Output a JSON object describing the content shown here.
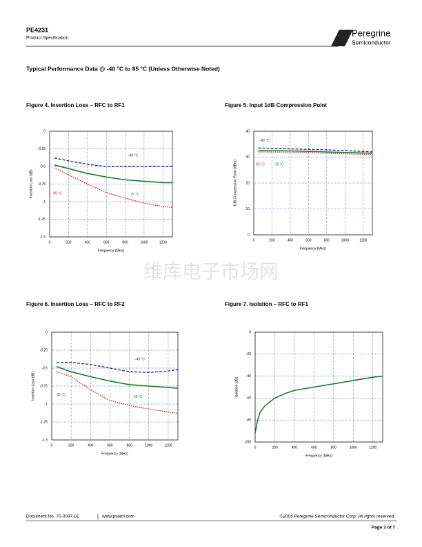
{
  "header": {
    "part": "PE4231",
    "subtitle": "Product Specification",
    "logo_top": "Peregrine",
    "logo_bottom": "Semiconductor"
  },
  "section_title": "Typical Performance Data @ -40 °C to 85 °C (Unless Otherwise Noted)",
  "watermark": "维库电子市场网",
  "footer": {
    "doc": "Document No. 70-0097-01",
    "url": "www.psemi.com",
    "copyright": "©2005 Peregrine Semiconductor Corp.  All rights reserved.",
    "page": "Page  3 of 7"
  },
  "chart_data": [
    {
      "type": "line",
      "title": "Figure 4.  Insertion Loss – RFC to RF1",
      "xlabel": "Frequency (MHz)",
      "ylabel": "Insertion Loss (dB)",
      "x": [
        50,
        200,
        400,
        600,
        800,
        1000,
        1200,
        1300
      ],
      "series": [
        {
          "name": "-40 °C",
          "color": "#1a2fa0",
          "style": "dashed",
          "values": [
            -0.38,
            -0.42,
            -0.47,
            -0.5,
            -0.5,
            -0.5,
            -0.5,
            -0.5
          ]
        },
        {
          "name": "25 °C",
          "color": "#1a7a2a",
          "style": "solid",
          "values": [
            -0.48,
            -0.53,
            -0.6,
            -0.65,
            -0.69,
            -0.71,
            -0.73,
            -0.73
          ]
        },
        {
          "name": "85 °C",
          "color": "#d42020",
          "style": "dotted",
          "values": [
            -0.52,
            -0.62,
            -0.75,
            -0.87,
            -0.95,
            -1.02,
            -1.07,
            -1.08
          ]
        }
      ],
      "xlim": [
        0,
        1300
      ],
      "xticks": [
        0,
        200,
        400,
        600,
        800,
        1000,
        1200
      ],
      "ylim": [
        -1.5,
        0
      ],
      "yticks": [
        0,
        -0.25,
        -0.5,
        -0.75,
        -1,
        -1.25,
        -1.5
      ],
      "grid": true
    },
    {
      "type": "line",
      "title": "Figure 5. Input 1dB Compression Point",
      "xlabel": "Frequency (MHz)",
      "ylabel": "1dB Compression Point (dBm)",
      "x": [
        50,
        200,
        400,
        600,
        800,
        1000,
        1200,
        1300
      ],
      "series": [
        {
          "name": "-40 °C",
          "color": "#1a2fa0",
          "style": "dashed",
          "values": [
            33.5,
            33.4,
            33.2,
            33,
            32.8,
            32.5,
            32.2,
            32
          ]
        },
        {
          "name": "25 °C",
          "color": "#1a7a2a",
          "style": "solid",
          "values": [
            32.5,
            32.5,
            32.4,
            32.2,
            32,
            31.8,
            31.6,
            31.5
          ]
        },
        {
          "name": "85 °C",
          "color": "#d42020",
          "style": "dotted",
          "values": [
            32,
            32,
            31.9,
            31.7,
            31.5,
            31.3,
            31.1,
            31
          ]
        }
      ],
      "xlim": [
        0,
        1300
      ],
      "xticks": [
        0,
        200,
        400,
        600,
        800,
        1000,
        1200
      ],
      "ylim": [
        0,
        40
      ],
      "yticks": [
        0,
        10,
        20,
        30,
        40
      ],
      "grid": true
    },
    {
      "type": "line",
      "title": "Figure 6.  Insertion Loss – RFC to RF2",
      "xlabel": "Frequency (MHz)",
      "ylabel": "Insertion Loss (dB)",
      "x": [
        50,
        200,
        400,
        600,
        800,
        1000,
        1200,
        1300
      ],
      "series": [
        {
          "name": "-40 °C",
          "color": "#1a2fa0",
          "style": "dashed",
          "values": [
            -0.42,
            -0.42,
            -0.45,
            -0.5,
            -0.55,
            -0.56,
            -0.54,
            -0.52
          ]
        },
        {
          "name": "25 °C",
          "color": "#1a7a2a",
          "style": "solid",
          "values": [
            -0.48,
            -0.55,
            -0.62,
            -0.68,
            -0.73,
            -0.75,
            -0.77,
            -0.78
          ]
        },
        {
          "name": "85 °C",
          "color": "#d42020",
          "style": "dotted",
          "values": [
            -0.55,
            -0.62,
            -0.8,
            -0.95,
            -1.02,
            -1.07,
            -1.11,
            -1.13
          ]
        }
      ],
      "xlim": [
        0,
        1300
      ],
      "xticks": [
        0,
        200,
        400,
        600,
        800,
        1000,
        1200
      ],
      "ylim": [
        -1.5,
        0
      ],
      "yticks": [
        0,
        -0.25,
        -0.5,
        -0.75,
        -1,
        -1.25,
        -1.5
      ],
      "grid": true
    },
    {
      "type": "line",
      "title": "Figure 7.  Isolation – RFC to RF1",
      "xlabel": "Frequency (MHz)",
      "ylabel": "Isolation (dB)",
      "x": [
        0,
        25,
        50,
        100,
        200,
        300,
        400,
        600,
        800,
        1000,
        1200,
        1300
      ],
      "series": [
        {
          "color": "#1a7a2a",
          "style": "solid",
          "values": [
            -92,
            -80,
            -73,
            -67,
            -60,
            -56,
            -53,
            -50,
            -47,
            -44,
            -41,
            -40
          ]
        }
      ],
      "xlim": [
        0,
        1300
      ],
      "xticks": [
        0,
        200,
        400,
        600,
        800,
        1000,
        1200
      ],
      "ylim": [
        -100,
        0
      ],
      "yticks": [
        -100,
        -80,
        -60,
        -40,
        -20,
        0
      ],
      "grid": true
    }
  ]
}
